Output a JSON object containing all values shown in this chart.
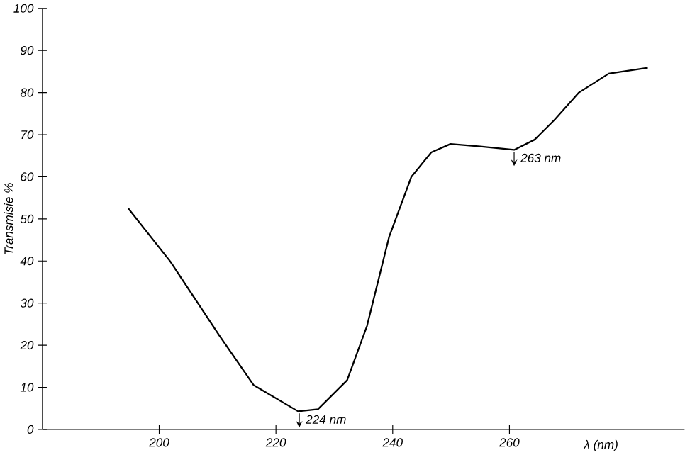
{
  "chart_data": {
    "type": "line",
    "xlabel": "λ (nm)",
    "ylabel": "Transmisie %",
    "x": [
      194.7,
      201.9,
      210.3,
      216.2,
      223.8,
      227.2,
      232.2,
      235.6,
      239.4,
      243.2,
      246.6,
      249.9,
      255,
      260.8,
      264.3,
      267.7,
      271.9,
      277,
      283.7
    ],
    "series": [
      {
        "color": "#000000",
        "values": [
          52.5,
          39.9,
          22.3,
          10.5,
          4.3,
          4.8,
          11.7,
          24.6,
          45.8,
          60,
          65.8,
          67.8,
          67.2,
          66.4,
          68.8,
          73.5,
          80,
          84.5,
          85.9
        ]
      }
    ],
    "xlim": [
      180,
      290
    ],
    "ylim": [
      0,
      100
    ],
    "xticks": [
      200,
      220,
      240,
      260
    ],
    "yticks": [
      0,
      10,
      20,
      30,
      40,
      50,
      60,
      70,
      80,
      90,
      100
    ],
    "annotations": [
      {
        "text": "224 nm",
        "x": 224,
        "y": 4.3
      },
      {
        "text": "263 nm",
        "x": 260.8,
        "y": 66.4
      }
    ],
    "grid": false,
    "marker": "none",
    "line_style": "solid"
  }
}
